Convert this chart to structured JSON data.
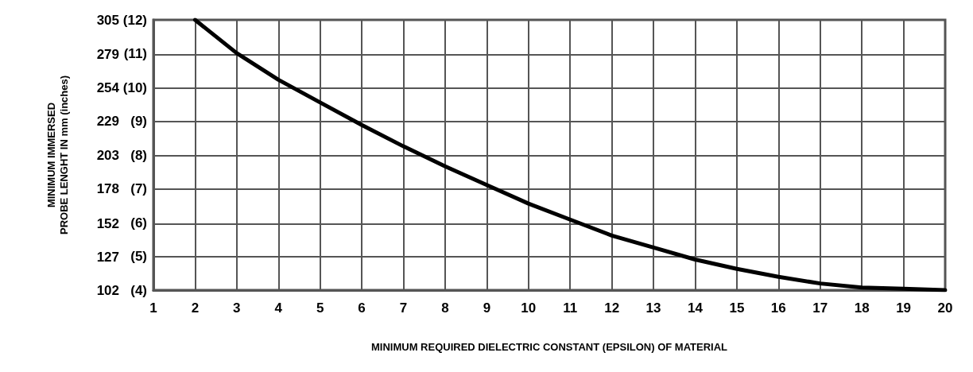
{
  "chart_data": {
    "type": "line",
    "xlabel": "MINIMUM REQUIRED DIELECTRIC CONSTANT (EPSILON) OF MATERIAL",
    "ylabel": "MINIMUM IMMERSED\nPROBE LENGHT IN mm (inches)",
    "x": [
      2,
      3,
      4,
      5,
      6,
      7,
      8,
      9,
      10,
      11,
      12,
      13,
      14,
      15,
      16,
      17,
      18,
      19,
      20
    ],
    "series": [
      {
        "color": "#000000",
        "values": [
          305,
          280,
          260,
          243,
          226,
          210,
          195,
          181,
          167,
          155,
          143,
          134,
          125,
          118,
          112,
          107,
          104,
          103,
          102
        ]
      }
    ],
    "xlim": [
      1,
      20
    ],
    "xticks": [
      1,
      2,
      3,
      4,
      5,
      6,
      7,
      8,
      9,
      10,
      11,
      12,
      13,
      14,
      15,
      16,
      17,
      18,
      19,
      20
    ],
    "ylim": [
      102,
      305
    ],
    "yticks": [
      102,
      127,
      152,
      178,
      203,
      229,
      254,
      279,
      305
    ],
    "y2lim": [
      4,
      12
    ],
    "y2ticks": [
      {
        "value": 4,
        "label": "(4)"
      },
      {
        "value": 5,
        "label": "(5)"
      },
      {
        "value": 6,
        "label": "(6)"
      },
      {
        "value": 7,
        "label": "(7)"
      },
      {
        "value": 8,
        "label": "(8)"
      },
      {
        "value": 9,
        "label": "(9)"
      },
      {
        "value": 10,
        "label": "(10)"
      },
      {
        "value": 11,
        "label": "(11)"
      },
      {
        "value": 12,
        "label": "(12)"
      }
    ],
    "grid": true,
    "marker": "none",
    "line_style": "solid"
  }
}
